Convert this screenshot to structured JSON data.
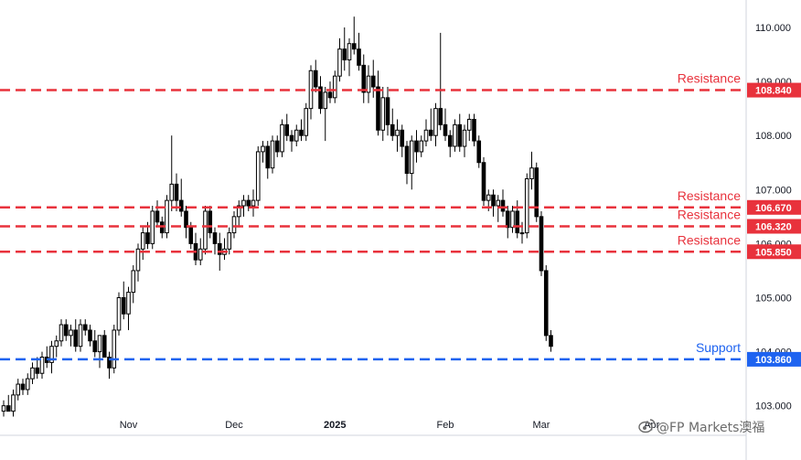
{
  "chart_data": {
    "type": "candlestick",
    "title": "",
    "xlabel": "",
    "ylabel": "",
    "ylim": [
      102.75,
      110.25
    ],
    "y_ticks": [
      "103.000",
      "104.000",
      "105.000",
      "106.000",
      "107.000",
      "108.000",
      "109.000",
      "110.000"
    ],
    "x_ticks": [
      {
        "label": "Nov",
        "index": 26
      },
      {
        "label": "Dec",
        "index": 48
      },
      {
        "label": "2025",
        "index": 69
      },
      {
        "label": "Feb",
        "index": 92
      },
      {
        "label": "Mar",
        "index": 112
      },
      {
        "label": "Apr",
        "index": 135
      }
    ],
    "candles": [
      [
        102.9,
        103.1,
        102.8,
        103.0
      ],
      [
        103.0,
        103.2,
        102.9,
        102.9
      ],
      [
        102.9,
        103.3,
        102.8,
        103.2
      ],
      [
        103.2,
        103.5,
        103.1,
        103.4
      ],
      [
        103.4,
        103.5,
        103.2,
        103.3
      ],
      [
        103.3,
        103.6,
        103.2,
        103.5
      ],
      [
        103.5,
        103.8,
        103.4,
        103.7
      ],
      [
        103.7,
        103.9,
        103.5,
        103.6
      ],
      [
        103.6,
        104.0,
        103.5,
        103.9
      ],
      [
        103.9,
        104.1,
        103.7,
        103.8
      ],
      [
        103.8,
        104.2,
        103.6,
        104.1
      ],
      [
        104.1,
        104.3,
        103.9,
        104.2
      ],
      [
        104.2,
        104.6,
        104.1,
        104.5
      ],
      [
        104.5,
        104.6,
        104.2,
        104.3
      ],
      [
        104.3,
        104.5,
        104.1,
        104.4
      ],
      [
        104.4,
        104.6,
        104.0,
        104.1
      ],
      [
        104.1,
        104.6,
        104.0,
        104.5
      ],
      [
        104.5,
        104.6,
        104.3,
        104.4
      ],
      [
        104.4,
        104.5,
        104.1,
        104.2
      ],
      [
        104.2,
        104.4,
        103.9,
        104.0
      ],
      [
        104.0,
        104.3,
        103.7,
        104.3
      ],
      [
        104.3,
        104.4,
        103.9,
        103.9
      ],
      [
        103.9,
        104.0,
        103.5,
        103.7
      ],
      [
        103.7,
        104.5,
        103.6,
        104.4
      ],
      [
        104.4,
        105.1,
        104.3,
        105.0
      ],
      [
        105.0,
        105.3,
        104.6,
        104.7
      ],
      [
        104.7,
        105.2,
        104.4,
        105.1
      ],
      [
        105.1,
        105.6,
        104.9,
        105.5
      ],
      [
        105.5,
        106.0,
        105.3,
        105.9
      ],
      [
        105.9,
        106.3,
        105.7,
        106.2
      ],
      [
        106.2,
        106.4,
        105.9,
        106.0
      ],
      [
        106.0,
        106.7,
        105.9,
        106.6
      ],
      [
        106.6,
        106.8,
        106.3,
        106.4
      ],
      [
        106.4,
        106.5,
        106.1,
        106.2
      ],
      [
        106.2,
        106.9,
        106.1,
        106.8
      ],
      [
        106.8,
        108.0,
        106.6,
        107.1
      ],
      [
        107.1,
        107.3,
        106.6,
        106.8
      ],
      [
        106.8,
        107.2,
        106.5,
        106.6
      ],
      [
        106.6,
        106.7,
        106.1,
        106.3
      ],
      [
        106.3,
        106.4,
        105.9,
        106.0
      ],
      [
        106.0,
        106.2,
        105.6,
        105.7
      ],
      [
        105.7,
        106.1,
        105.6,
        105.9
      ],
      [
        105.9,
        106.7,
        105.8,
        106.6
      ],
      [
        106.6,
        106.7,
        106.1,
        106.2
      ],
      [
        106.2,
        106.3,
        105.8,
        106.0
      ],
      [
        106.0,
        106.2,
        105.5,
        105.8
      ],
      [
        105.8,
        106.1,
        105.7,
        105.9
      ],
      [
        105.9,
        106.3,
        105.8,
        106.2
      ],
      [
        106.2,
        106.6,
        106.1,
        106.5
      ],
      [
        106.5,
        106.8,
        106.3,
        106.7
      ],
      [
        106.7,
        106.9,
        106.5,
        106.8
      ],
      [
        106.8,
        106.9,
        106.6,
        106.7
      ],
      [
        106.7,
        107.0,
        106.5,
        106.8
      ],
      [
        106.8,
        107.8,
        106.7,
        107.7
      ],
      [
        107.7,
        107.9,
        107.5,
        107.8
      ],
      [
        107.8,
        107.9,
        107.2,
        107.4
      ],
      [
        107.4,
        108.0,
        107.3,
        107.9
      ],
      [
        107.9,
        108.0,
        107.6,
        107.7
      ],
      [
        107.7,
        108.3,
        107.6,
        108.2
      ],
      [
        108.2,
        108.4,
        107.9,
        108.0
      ],
      [
        108.0,
        108.1,
        107.7,
        107.9
      ],
      [
        107.9,
        108.2,
        107.8,
        108.1
      ],
      [
        108.1,
        108.3,
        107.9,
        108.0
      ],
      [
        108.0,
        108.6,
        107.9,
        108.5
      ],
      [
        108.5,
        109.3,
        108.3,
        109.2
      ],
      [
        109.2,
        109.4,
        108.8,
        108.9
      ],
      [
        108.9,
        109.1,
        108.4,
        108.5
      ],
      [
        108.5,
        108.9,
        107.9,
        108.8
      ],
      [
        108.8,
        109.0,
        108.6,
        108.7
      ],
      [
        108.7,
        109.2,
        108.6,
        109.1
      ],
      [
        109.1,
        109.8,
        109.0,
        109.6
      ],
      [
        109.6,
        110.0,
        109.2,
        109.4
      ],
      [
        109.4,
        109.8,
        109.1,
        109.7
      ],
      [
        109.7,
        110.2,
        109.5,
        109.6
      ],
      [
        109.6,
        109.9,
        109.2,
        109.3
      ],
      [
        109.3,
        109.5,
        108.6,
        108.8
      ],
      [
        108.8,
        109.3,
        108.6,
        109.1
      ],
      [
        109.1,
        109.4,
        108.7,
        108.9
      ],
      [
        108.9,
        109.2,
        108.0,
        108.1
      ],
      [
        108.1,
        108.9,
        107.9,
        108.7
      ],
      [
        108.7,
        108.9,
        108.0,
        108.2
      ],
      [
        108.2,
        108.5,
        107.9,
        108.0
      ],
      [
        108.0,
        108.3,
        107.7,
        108.1
      ],
      [
        108.1,
        108.2,
        107.6,
        107.8
      ],
      [
        107.8,
        107.9,
        107.1,
        107.3
      ],
      [
        107.3,
        108.0,
        107.0,
        107.9
      ],
      [
        107.9,
        108.1,
        107.5,
        107.7
      ],
      [
        107.7,
        108.0,
        107.6,
        107.9
      ],
      [
        107.9,
        108.3,
        107.8,
        108.1
      ],
      [
        108.1,
        108.5,
        107.9,
        108.0
      ],
      [
        108.0,
        108.6,
        107.8,
        108.5
      ],
      [
        108.5,
        109.9,
        108.1,
        108.2
      ],
      [
        108.2,
        108.5,
        107.9,
        108.0
      ],
      [
        108.0,
        108.1,
        107.6,
        107.8
      ],
      [
        107.8,
        108.3,
        107.7,
        108.2
      ],
      [
        108.2,
        108.4,
        107.7,
        107.8
      ],
      [
        107.8,
        108.2,
        107.6,
        108.1
      ],
      [
        108.1,
        108.4,
        107.9,
        108.3
      ],
      [
        108.3,
        108.4,
        107.8,
        107.9
      ],
      [
        107.9,
        108.0,
        107.4,
        107.5
      ],
      [
        107.5,
        107.6,
        106.7,
        106.8
      ],
      [
        106.8,
        107.0,
        106.6,
        106.9
      ],
      [
        106.9,
        107.0,
        106.5,
        106.7
      ],
      [
        106.7,
        106.9,
        106.4,
        106.8
      ],
      [
        106.8,
        107.0,
        106.5,
        106.6
      ],
      [
        106.6,
        106.7,
        106.1,
        106.3
      ],
      [
        106.3,
        106.7,
        106.2,
        106.6
      ],
      [
        106.6,
        106.8,
        106.1,
        106.2
      ],
      [
        106.2,
        106.4,
        106.0,
        106.2
      ],
      [
        106.2,
        107.3,
        106.1,
        107.2
      ],
      [
        107.2,
        107.7,
        107.0,
        107.4
      ],
      [
        107.4,
        107.5,
        106.4,
        106.5
      ],
      [
        106.5,
        106.6,
        105.4,
        105.5
      ],
      [
        105.5,
        105.6,
        104.2,
        104.3
      ],
      [
        104.3,
        104.4,
        104.0,
        104.1
      ]
    ],
    "levels": [
      {
        "name": "Resistance",
        "value": 108.84,
        "badge": "108.840",
        "color": "#e8323c"
      },
      {
        "name": "Resistance",
        "value": 106.67,
        "badge": "106.670",
        "color": "#e8323c"
      },
      {
        "name": "Resistance",
        "value": 106.32,
        "badge": "106.320",
        "color": "#e8323c"
      },
      {
        "name": "Resistance",
        "value": 105.85,
        "badge": "105.850",
        "color": "#e8323c"
      },
      {
        "name": "Support",
        "value": 103.86,
        "badge": "103.860",
        "color": "#1e63f0"
      }
    ],
    "grid": false,
    "candle_color": "#000000"
  },
  "watermark": {
    "text": "@FP Markets澳福",
    "icon": "weibo-icon"
  }
}
